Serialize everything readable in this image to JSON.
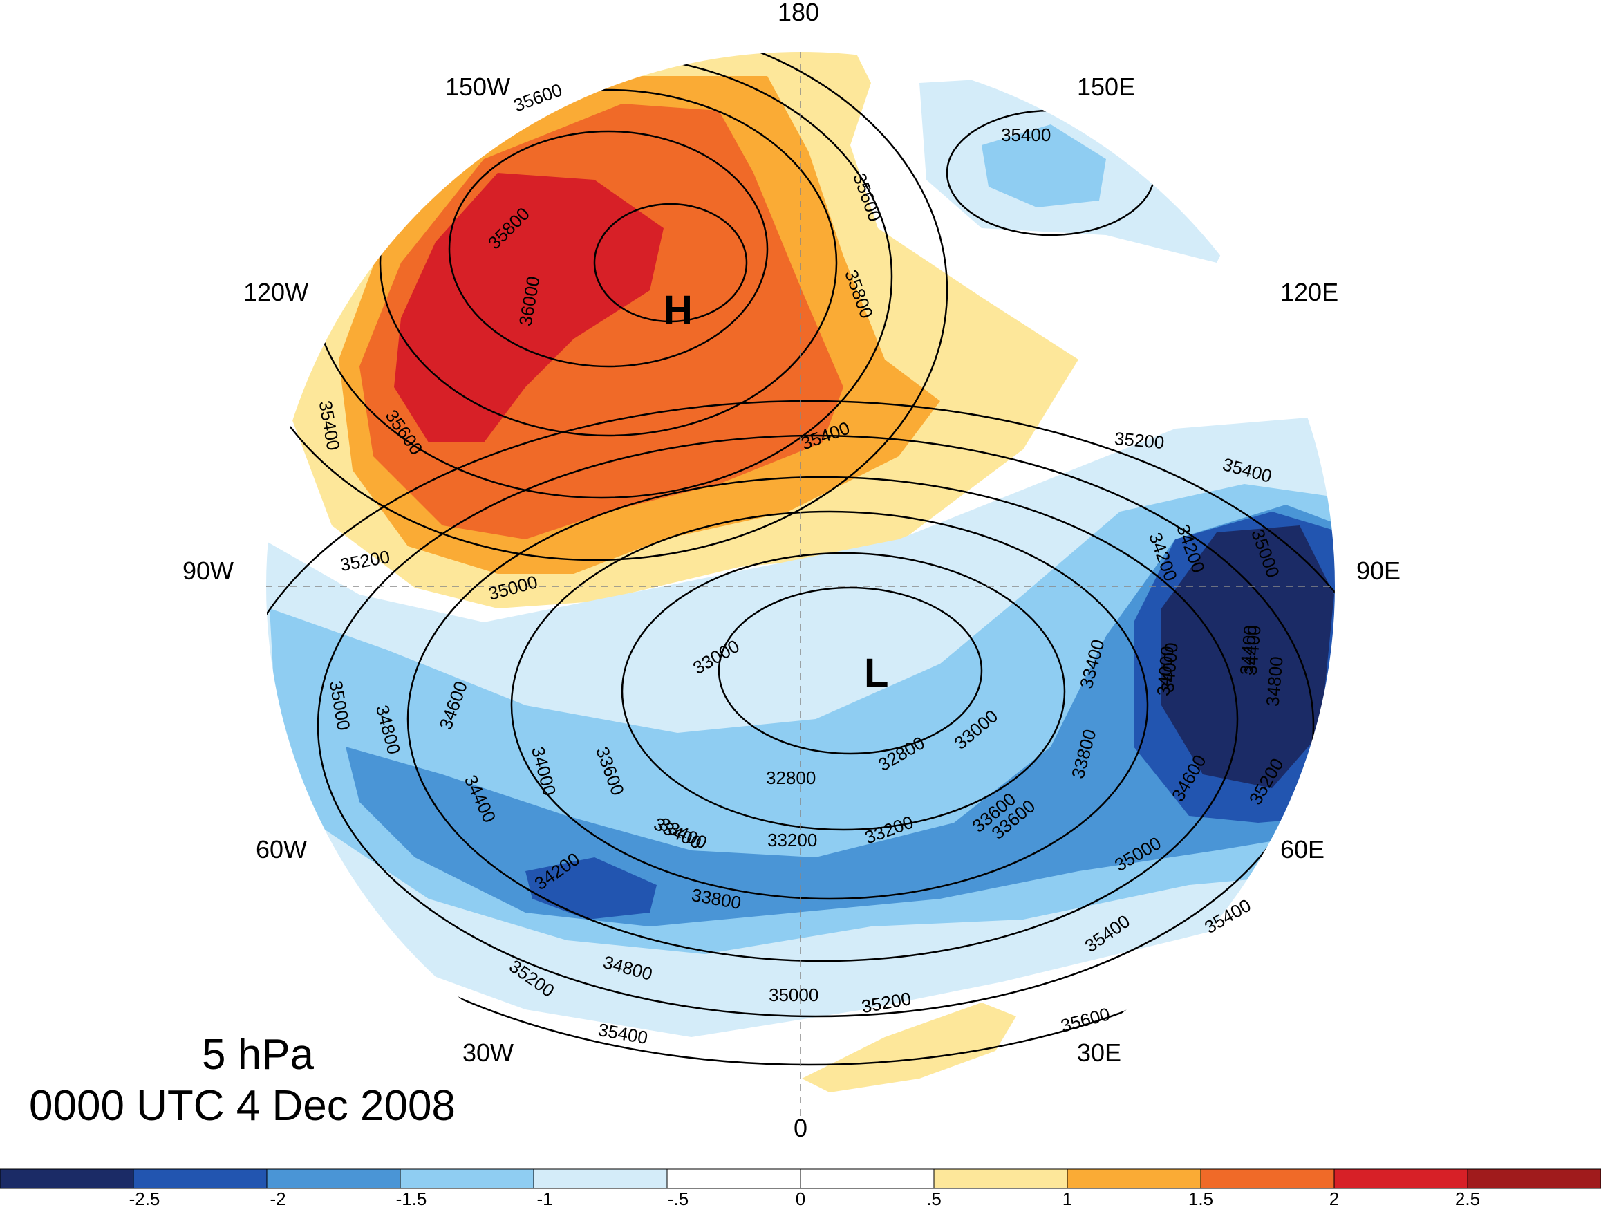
{
  "map": {
    "projection": "north-polar-stereographic",
    "high_marker": "H",
    "low_marker": "L",
    "longitude_labels": [
      "180",
      "150E",
      "120E",
      "90E",
      "60E",
      "30E",
      "0",
      "30W",
      "60W",
      "90W",
      "120W",
      "150W"
    ],
    "contour_labels": [
      "35600",
      "35400",
      "35800",
      "36000",
      "35400",
      "35600",
      "35400",
      "35600",
      "35800",
      "35400",
      "35200",
      "35200",
      "35000",
      "35000",
      "34800",
      "34600",
      "34400",
      "34200",
      "34000",
      "33400",
      "33000",
      "32800",
      "32800",
      "33000",
      "33400",
      "33600",
      "33800",
      "34000",
      "34200",
      "34400",
      "34600",
      "34800",
      "35000",
      "35200",
      "35000",
      "35200",
      "35400",
      "35600",
      "35400",
      "35200",
      "35000",
      "34800",
      "33800",
      "33400",
      "33200",
      "33200",
      "33600",
      "34200",
      "34400",
      "33600",
      "34000",
      "35400",
      "35200"
    ],
    "colors": {
      "ocean_white": "#ffffff",
      "coastline": "#666666",
      "contour": "#000000"
    }
  },
  "title": {
    "level": "5 hPa",
    "time": "0000 UTC 4 Dec 2008"
  },
  "colorbar": {
    "tick_labels": [
      "-2.5",
      "-2",
      "-1.5",
      "-1",
      "-.5",
      "0",
      ".5",
      "1",
      "1.5",
      "2",
      "2.5"
    ],
    "colors": [
      "#1b2b66",
      "#2255b0",
      "#4a95d6",
      "#8fcdf2",
      "#d4ecf9",
      "#ffffff",
      "#ffffff",
      "#fde79a",
      "#faab35",
      "#f06a28",
      "#d72027",
      "#a01b1c"
    ]
  }
}
